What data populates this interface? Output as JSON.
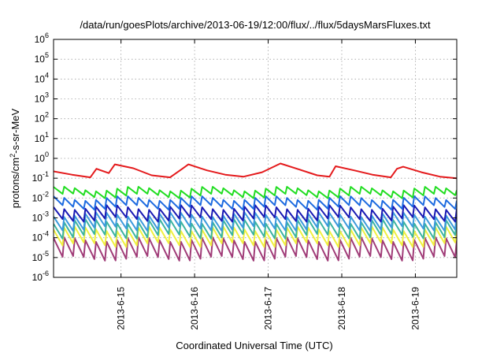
{
  "chart_data": {
    "type": "line",
    "title": "/data/run/goesPlots/archive/2013-06-19/12:00/flux/../flux/5daysMarsFluxes.txt",
    "xlabel": "Coordinated Universal Time (UTC)",
    "ylabel_parts": [
      "protons/cm",
      "2",
      "-s-sr-MeV"
    ],
    "y_scale": "log",
    "ylim": [
      1e-06,
      1000000.0
    ],
    "xlim": [
      "2013-06-14T02:00",
      "2013-06-19T13:30"
    ],
    "grid": true,
    "y_ticks": [
      {
        "base": "10",
        "exp": "-6",
        "value": 1e-06
      },
      {
        "base": "10",
        "exp": "-5",
        "value": 1e-05
      },
      {
        "base": "10",
        "exp": "-4",
        "value": 0.0001
      },
      {
        "base": "10",
        "exp": "-3",
        "value": 0.001
      },
      {
        "base": "10",
        "exp": "-2",
        "value": 0.01
      },
      {
        "base": "10",
        "exp": "-1",
        "value": 0.1
      },
      {
        "base": "10",
        "exp": "0",
        "value": 1
      },
      {
        "base": "10",
        "exp": "1",
        "value": 10
      },
      {
        "base": "10",
        "exp": "2",
        "value": 100
      },
      {
        "base": "10",
        "exp": "3",
        "value": 1000
      },
      {
        "base": "10",
        "exp": "4",
        "value": 10000
      },
      {
        "base": "10",
        "exp": "5",
        "value": 100000
      },
      {
        "base": "10",
        "exp": "6",
        "value": 1000000
      }
    ],
    "x_ticks": [
      {
        "label": "2013-6-15",
        "value": "2013-06-15T00:00"
      },
      {
        "label": "2013-6-16",
        "value": "2013-06-16T00:00"
      },
      {
        "label": "2013-6-17",
        "value": "2013-06-17T00:00"
      },
      {
        "label": "2013-6-18",
        "value": "2013-06-18T00:00"
      },
      {
        "label": "2013-6-19",
        "value": "2013-06-19T00:00"
      }
    ],
    "series": [
      {
        "color": "#e41a1c",
        "x": [
          "2013-06-14T02:00",
          "2013-06-14T08:00",
          "2013-06-14T14:00",
          "2013-06-14T16:00",
          "2013-06-14T20:00",
          "2013-06-14T22:00",
          "2013-06-15T04:00",
          "2013-06-15T10:00",
          "2013-06-15T16:00",
          "2013-06-15T20:00",
          "2013-06-15T22:00",
          "2013-06-16T04:00",
          "2013-06-16T10:00",
          "2013-06-16T16:00",
          "2013-06-16T22:00",
          "2013-06-17T04:00",
          "2013-06-17T10:00",
          "2013-06-17T16:00",
          "2013-06-17T20:00",
          "2013-06-17T22:00",
          "2013-06-18T04:00",
          "2013-06-18T10:00",
          "2013-06-18T16:00",
          "2013-06-18T18:00",
          "2013-06-18T20:00",
          "2013-06-19T02:00",
          "2013-06-19T08:00",
          "2013-06-19T13:30"
        ],
        "y": [
          0.22,
          0.15,
          0.11,
          0.3,
          0.18,
          0.5,
          0.32,
          0.14,
          0.11,
          0.3,
          0.5,
          0.25,
          0.15,
          0.12,
          0.2,
          0.55,
          0.28,
          0.14,
          0.12,
          0.4,
          0.25,
          0.15,
          0.11,
          0.3,
          0.38,
          0.2,
          0.12,
          0.1
        ]
      },
      {
        "color": "#22dd22",
        "baseline": 0.02,
        "amplitude_decades": 0.35,
        "teeth": 38
      },
      {
        "color": "#1e6be0",
        "baseline": 0.006,
        "amplitude_decades": 0.45,
        "teeth": 38
      },
      {
        "color": "#1a1ab4",
        "baseline": 0.0018,
        "amplitude_decades": 0.6,
        "teeth": 38
      },
      {
        "color": "#3c9adc",
        "baseline": 0.0007,
        "amplitude_decades": 0.7,
        "teeth": 38
      },
      {
        "color": "#3cb4a0",
        "baseline": 0.0003,
        "amplitude_decades": 0.75,
        "teeth": 38
      },
      {
        "color": "#f0f040",
        "baseline": 0.00012,
        "amplitude_decades": 0.8,
        "teeth": 38
      },
      {
        "color": "#a03c78",
        "baseline": 3e-05,
        "amplitude_decades": 0.95,
        "teeth": 38
      }
    ]
  }
}
